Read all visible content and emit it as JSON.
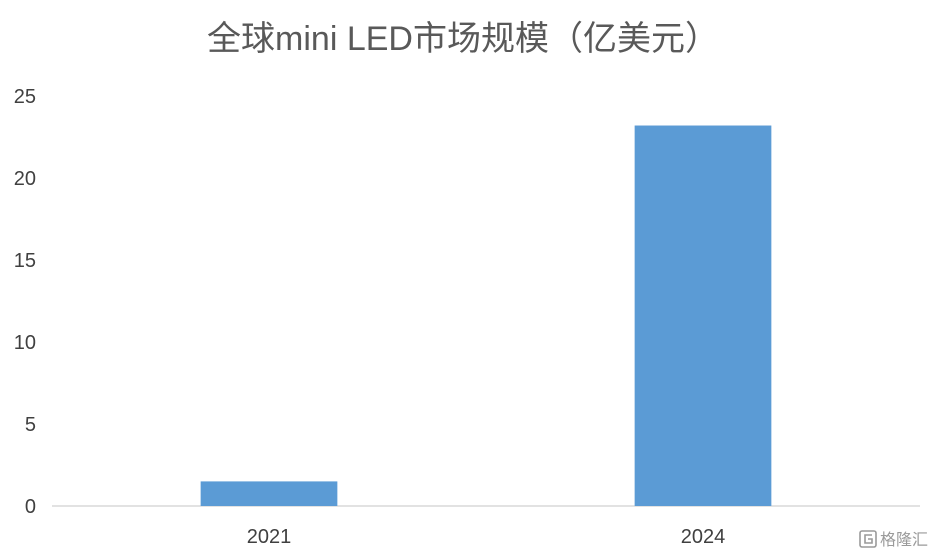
{
  "chart_data": {
    "type": "bar",
    "title": "全球mini LED市场规模（亿美元）",
    "categories": [
      "2021",
      "2024"
    ],
    "values": [
      1.5,
      23.2
    ],
    "ylim": [
      0,
      25
    ],
    "yticks": [
      0,
      5,
      10,
      15,
      20,
      25
    ],
    "grid": false,
    "legend": "none",
    "bar_color": "#5b9bd5",
    "axis_color": "#d9d9d9"
  },
  "watermark": {
    "text": "格隆汇",
    "icon": "g-logo-icon"
  }
}
